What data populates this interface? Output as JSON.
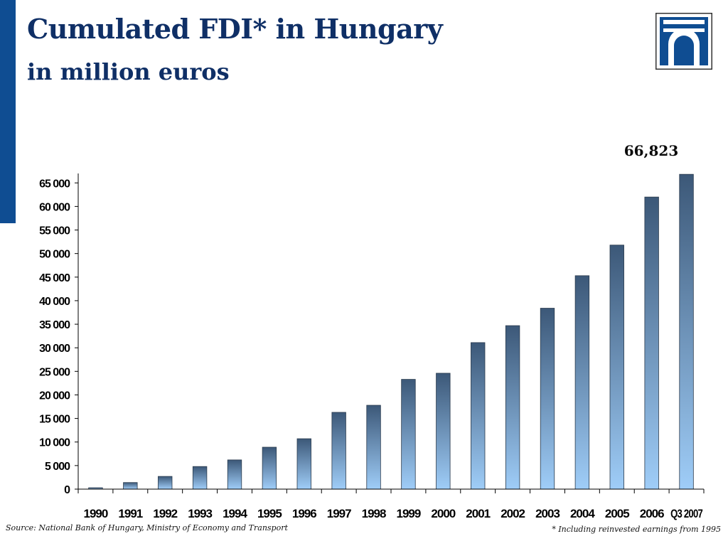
{
  "header": {
    "title": "Cumulated FDI* in Hungary",
    "subtitle": "in million euros"
  },
  "logo": {
    "icon": "bridge-logo-icon",
    "colors": {
      "frame": "#0f4d92",
      "inner": "#ffffff"
    }
  },
  "colors": {
    "accent_bar": "#0f4d92",
    "title": "#0f2f66",
    "bar_top": "#3c5878",
    "bar_bottom": "#9fcdf8"
  },
  "chart_data": {
    "type": "bar",
    "title": "Cumulated FDI* in Hungary",
    "subtitle": "in million euros",
    "xlabel": "",
    "ylabel": "",
    "categories": [
      "1990",
      "1991",
      "1992",
      "1993",
      "1994",
      "1995",
      "1996",
      "1997",
      "1998",
      "1999",
      "2000",
      "2001",
      "2002",
      "2003",
      "2004",
      "2005",
      "2006",
      "Q3 2007"
    ],
    "values": [
      300,
      1400,
      2700,
      4800,
      6200,
      8900,
      10700,
      16300,
      17800,
      23300,
      24600,
      31100,
      34700,
      38400,
      45300,
      51800,
      62000,
      66823
    ],
    "ylim": [
      0,
      67000
    ],
    "yticks": [
      0,
      5000,
      10000,
      15000,
      20000,
      25000,
      30000,
      35000,
      40000,
      45000,
      50000,
      55000,
      60000,
      65000
    ],
    "ytick_labels": [
      "0",
      "5 000",
      "10 000",
      "15 000",
      "20 000",
      "25 000",
      "30 000",
      "35 000",
      "40 000",
      "45 000",
      "50 000",
      "55 000",
      "60 000",
      "65 000"
    ],
    "annotation": {
      "category": "Q3 2007",
      "text": "66,823"
    },
    "grid": false,
    "legend": "none"
  },
  "footer": {
    "source": "Source: National Bank of Hungary, Ministry of Economy and Transport",
    "footnote": "* Including reinvested earnings from 1995"
  }
}
